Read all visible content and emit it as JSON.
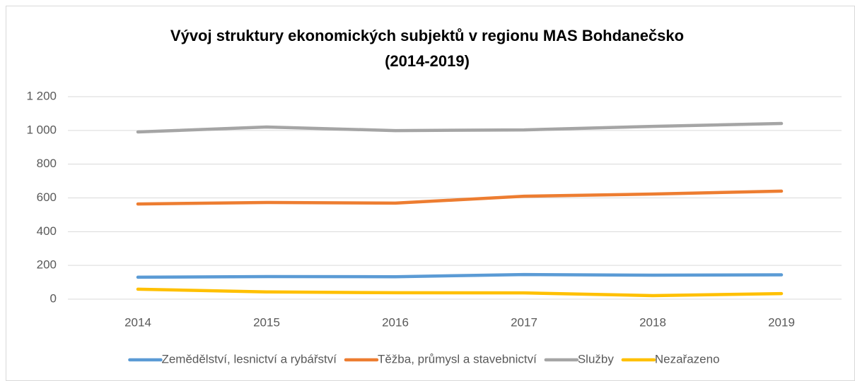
{
  "chart_data": {
    "type": "line",
    "title": [
      "Vývoj struktury ekonomických subjektů v regionu MAS Bohdanečsko",
      "(2014-2019)"
    ],
    "categories": [
      "2014",
      "2015",
      "2016",
      "2017",
      "2018",
      "2019"
    ],
    "series": [
      {
        "name": "Zemědělství, lesnictví a rybářství",
        "color": "#5b9bd5",
        "values": [
          130,
          134,
          133,
          146,
          142,
          144
        ]
      },
      {
        "name": "Těžba, průmysl a stavebnictví",
        "color": "#ed7d31",
        "values": [
          564,
          573,
          569,
          610,
          623,
          640
        ]
      },
      {
        "name": "Služby",
        "color": "#a5a5a5",
        "values": [
          991,
          1020,
          999,
          1003,
          1024,
          1041
        ]
      },
      {
        "name": "Nezařazeno",
        "color": "#ffc000",
        "values": [
          59,
          43,
          38,
          37,
          21,
          33
        ]
      }
    ],
    "ylim": [
      0,
      1200
    ],
    "yticks": [
      0,
      200,
      400,
      600,
      800,
      {
        "value": 1000,
        "label": "1 000"
      },
      {
        "value": 1200,
        "label": "1 200"
      }
    ],
    "grid": true,
    "legend": "bottom"
  }
}
